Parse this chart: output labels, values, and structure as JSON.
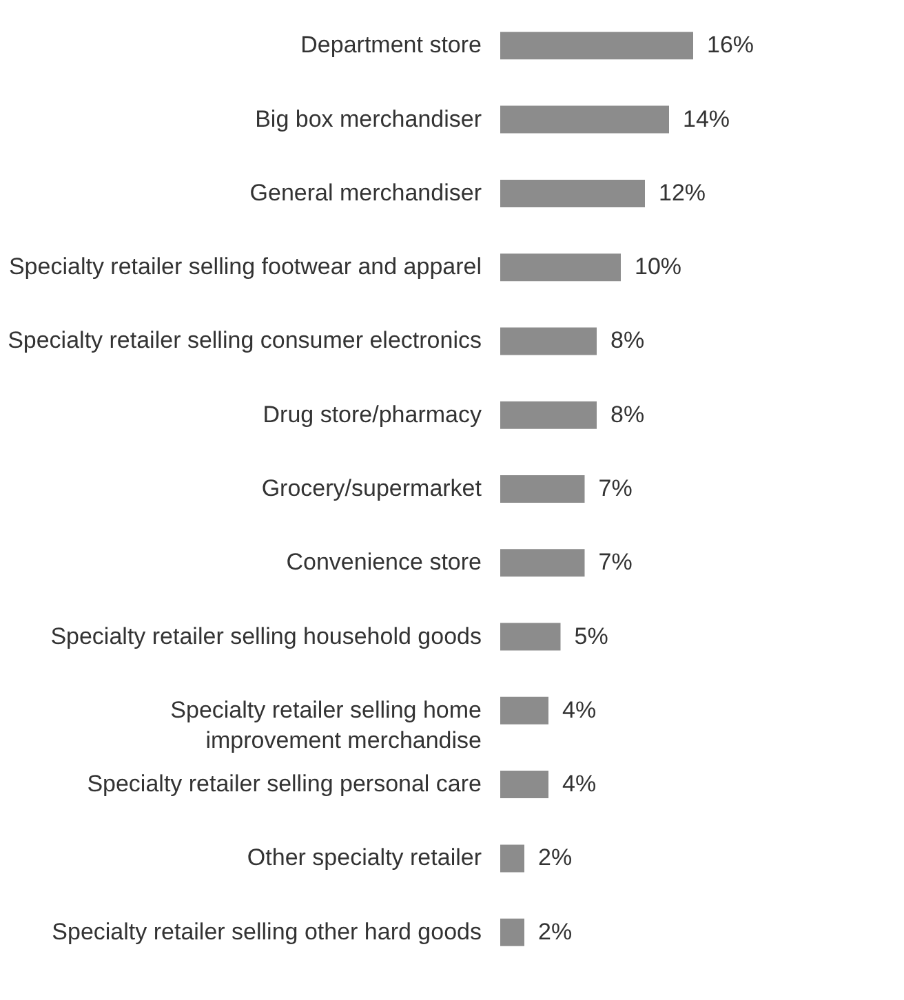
{
  "chart_data": {
    "type": "bar",
    "orientation": "horizontal",
    "categories": [
      "Department store",
      "Big box merchandiser",
      "General merchandiser",
      "Specialty retailer selling footwear and apparel",
      "Specialty retailer selling consumer electronics",
      "Drug store/pharmacy",
      "Grocery/supermarket",
      "Convenience store",
      "Specialty retailer selling household goods",
      "Specialty retailer selling home\nimprovement merchandise",
      "Specialty retailer selling personal care",
      "Other specialty retailer",
      "Specialty retailer selling other hard goods"
    ],
    "values": [
      16,
      14,
      12,
      10,
      8,
      8,
      7,
      7,
      5,
      4,
      4,
      2,
      2
    ],
    "value_labels": [
      "16%",
      "14%",
      "12%",
      "10%",
      "8%",
      "8%",
      "7%",
      "7%",
      "5%",
      "4%",
      "4%",
      "2%",
      "2%"
    ],
    "color": "#8c8c8c"
  }
}
